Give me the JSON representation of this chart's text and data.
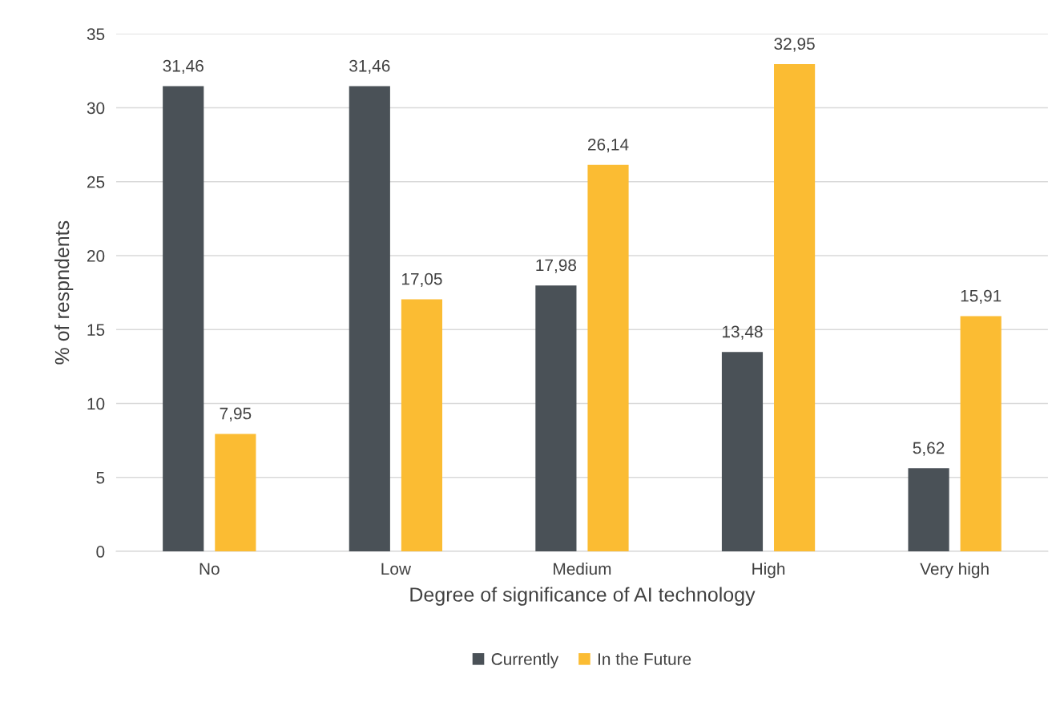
{
  "chart_data": {
    "type": "bar",
    "xlabel": "Degree of significance of AI technology",
    "ylabel": "% of respndents",
    "categories": [
      "No",
      "Low",
      "Medium",
      "High",
      "Very high"
    ],
    "series": [
      {
        "name": "Currently",
        "color": "#4a5157",
        "values": [
          31.46,
          31.46,
          17.98,
          13.48,
          5.62
        ],
        "value_labels": [
          "31,46",
          "31,46",
          "17,98",
          "13,48",
          "5,62"
        ]
      },
      {
        "name": "In the Future",
        "color": "#fbbc33",
        "values": [
          7.95,
          17.05,
          26.14,
          32.95,
          15.91
        ],
        "value_labels": [
          "7,95",
          "17,05",
          "26,14",
          "32,95",
          "15,91"
        ]
      }
    ],
    "ylim": [
      0,
      35
    ],
    "yticks": [
      0,
      5,
      10,
      15,
      20,
      25,
      30,
      35
    ],
    "grid": "y",
    "legend": "bottom"
  }
}
